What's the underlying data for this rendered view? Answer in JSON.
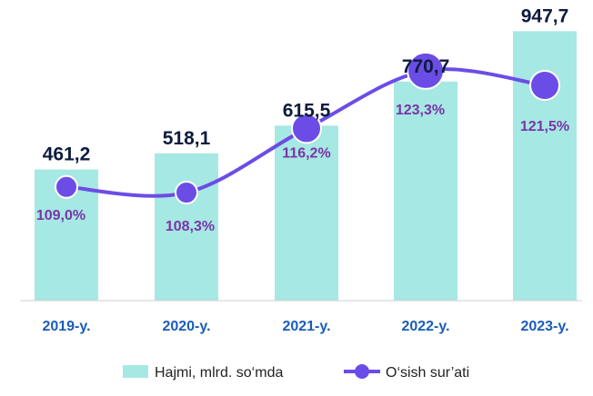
{
  "chart_data": {
    "type": "bar",
    "categories": [
      "2019-y.",
      "2020-y.",
      "2021-y.",
      "2022-y.",
      "2023-y."
    ],
    "series": [
      {
        "name": "Hajmi, mlrd. so‘mda",
        "type": "bar",
        "values": [
          461.2,
          518.1,
          615.5,
          770.7,
          947.7
        ],
        "value_labels": [
          "461,2",
          "518,1",
          "615,5",
          "770,7",
          "947,7"
        ],
        "color": "#a6e8e3"
      },
      {
        "name": "O‘sish sur’ati",
        "type": "line",
        "values": [
          109.0,
          108.3,
          116.2,
          123.3,
          121.5
        ],
        "value_labels": [
          "109,0%",
          "108,3%",
          "116,2%",
          "123,3%",
          "121,5%"
        ],
        "color": "#6c4ce6"
      }
    ],
    "bar_axis_range": [
      0,
      1000
    ],
    "line_axis_range": [
      95,
      130
    ],
    "grid": false,
    "legend_position": "bottom"
  }
}
